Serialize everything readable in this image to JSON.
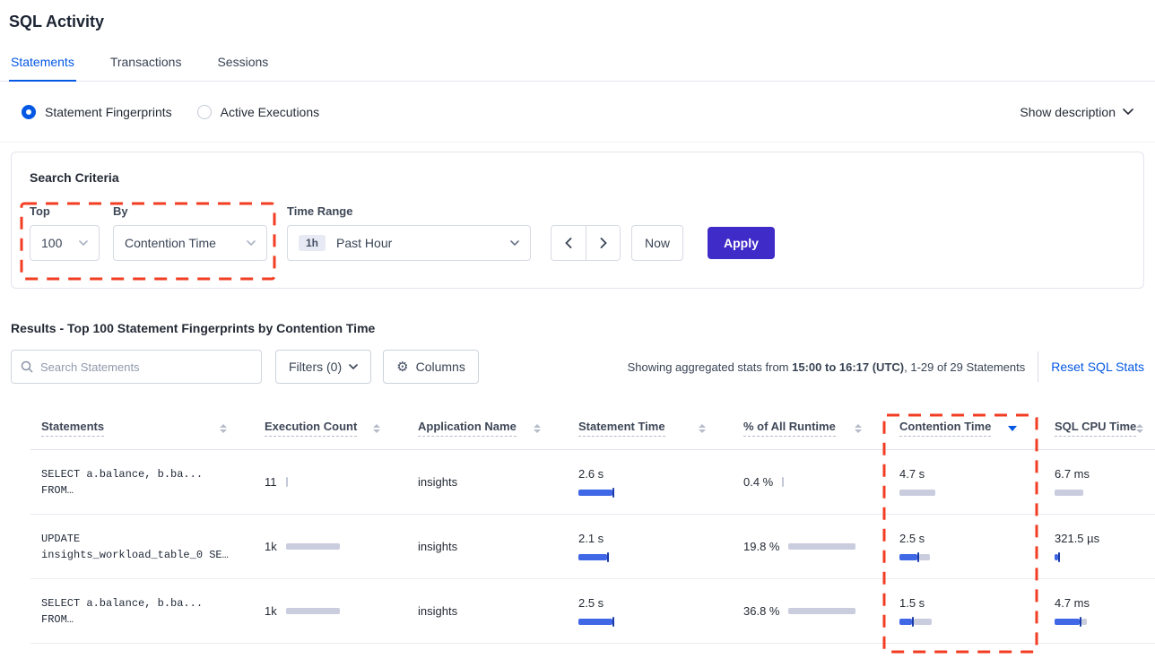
{
  "page": {
    "title": "SQL Activity"
  },
  "tabs": [
    {
      "label": "Statements",
      "active": true
    },
    {
      "label": "Transactions",
      "active": false
    },
    {
      "label": "Sessions",
      "active": false
    }
  ],
  "view_toggle": {
    "options": [
      {
        "label": "Statement Fingerprints",
        "selected": true
      },
      {
        "label": "Active Executions",
        "selected": false
      }
    ],
    "show_description_label": "Show description"
  },
  "search_criteria": {
    "heading": "Search Criteria",
    "top": {
      "label": "Top",
      "value": "100"
    },
    "by": {
      "label": "By",
      "value": "Contention Time"
    },
    "time_range": {
      "label": "Time Range",
      "badge": "1h",
      "value": "Past Hour"
    },
    "now_label": "Now",
    "apply_label": "Apply"
  },
  "results": {
    "heading": "Results - Top 100 Statement Fingerprints by Contention Time",
    "search_placeholder": "Search Statements",
    "filters_label": "Filters (0)",
    "columns_label": "Columns",
    "stats_prefix": "Showing aggregated stats from ",
    "stats_range": "15:00 to 16:17 (UTC)",
    "stats_suffix": ", 1-29 of 29 Statements",
    "reset_label": "Reset SQL Stats"
  },
  "table": {
    "columns": [
      "Statements",
      "Execution Count",
      "Application Name",
      "Statement Time",
      "% of All Runtime",
      "Contention Time",
      "SQL CPU Time"
    ],
    "sort": {
      "column": "Contention Time",
      "direction": "desc"
    },
    "rows": [
      {
        "statement_lines": [
          "SELECT a.balance, b.ba...",
          "FROM…"
        ],
        "execution_count": {
          "value": "11",
          "bar": {
            "blue": 0,
            "gray": 0,
            "tick": true
          }
        },
        "application_name": "insights",
        "statement_time": {
          "value": "2.6 s",
          "bar": {
            "blue": 38,
            "gray": 0,
            "tick": true
          }
        },
        "pct_of_all_runtime": {
          "value": "0.4 %",
          "bar": {
            "blue": 0,
            "gray": 0,
            "tick": true
          }
        },
        "contention_time": {
          "value": "4.7 s",
          "bar": {
            "blue": 0,
            "gray": 40,
            "tick": false
          }
        },
        "sql_cpu_time": {
          "value": "6.7 ms",
          "bar": {
            "blue": 0,
            "gray": 32,
            "tick": false
          }
        }
      },
      {
        "statement_lines": [
          "UPDATE",
          "insights_workload_table_0 SE…"
        ],
        "execution_count": {
          "value": "1k",
          "bar": {
            "blue": 0,
            "gray": 60,
            "tick": false
          }
        },
        "application_name": "insights",
        "statement_time": {
          "value": "2.1 s",
          "bar": {
            "blue": 32,
            "gray": 0,
            "tick": true
          }
        },
        "pct_of_all_runtime": {
          "value": "19.8 %",
          "bar": {
            "blue": 0,
            "gray": 75,
            "tick": false
          }
        },
        "contention_time": {
          "value": "2.5 s",
          "bar": {
            "blue": 20,
            "gray": 12,
            "tick": true
          }
        },
        "sql_cpu_time": {
          "value": "321.5 µs",
          "bar": {
            "blue": 4,
            "gray": 0,
            "tick": true
          }
        }
      },
      {
        "statement_lines": [
          "SELECT a.balance, b.ba...",
          "FROM…"
        ],
        "execution_count": {
          "value": "1k",
          "bar": {
            "blue": 0,
            "gray": 60,
            "tick": false
          }
        },
        "application_name": "insights",
        "statement_time": {
          "value": "2.5 s",
          "bar": {
            "blue": 38,
            "gray": 0,
            "tick": true
          }
        },
        "pct_of_all_runtime": {
          "value": "36.8 %",
          "bar": {
            "blue": 0,
            "gray": 75,
            "tick": false
          }
        },
        "contention_time": {
          "value": "1.5 s",
          "bar": {
            "blue": 14,
            "gray": 20,
            "tick": true
          }
        },
        "sql_cpu_time": {
          "value": "4.7 ms",
          "bar": {
            "blue": 28,
            "gray": 6,
            "tick": true
          }
        }
      }
    ]
  },
  "colors": {
    "accent_blue": "#0458e4",
    "apply_button": "#3f2bc8",
    "bar_blue": "#3f67e6",
    "bar_gray": "#c9cdde",
    "bar_tick": "#1b3ba6",
    "annotation_red": "#f23d23"
  }
}
